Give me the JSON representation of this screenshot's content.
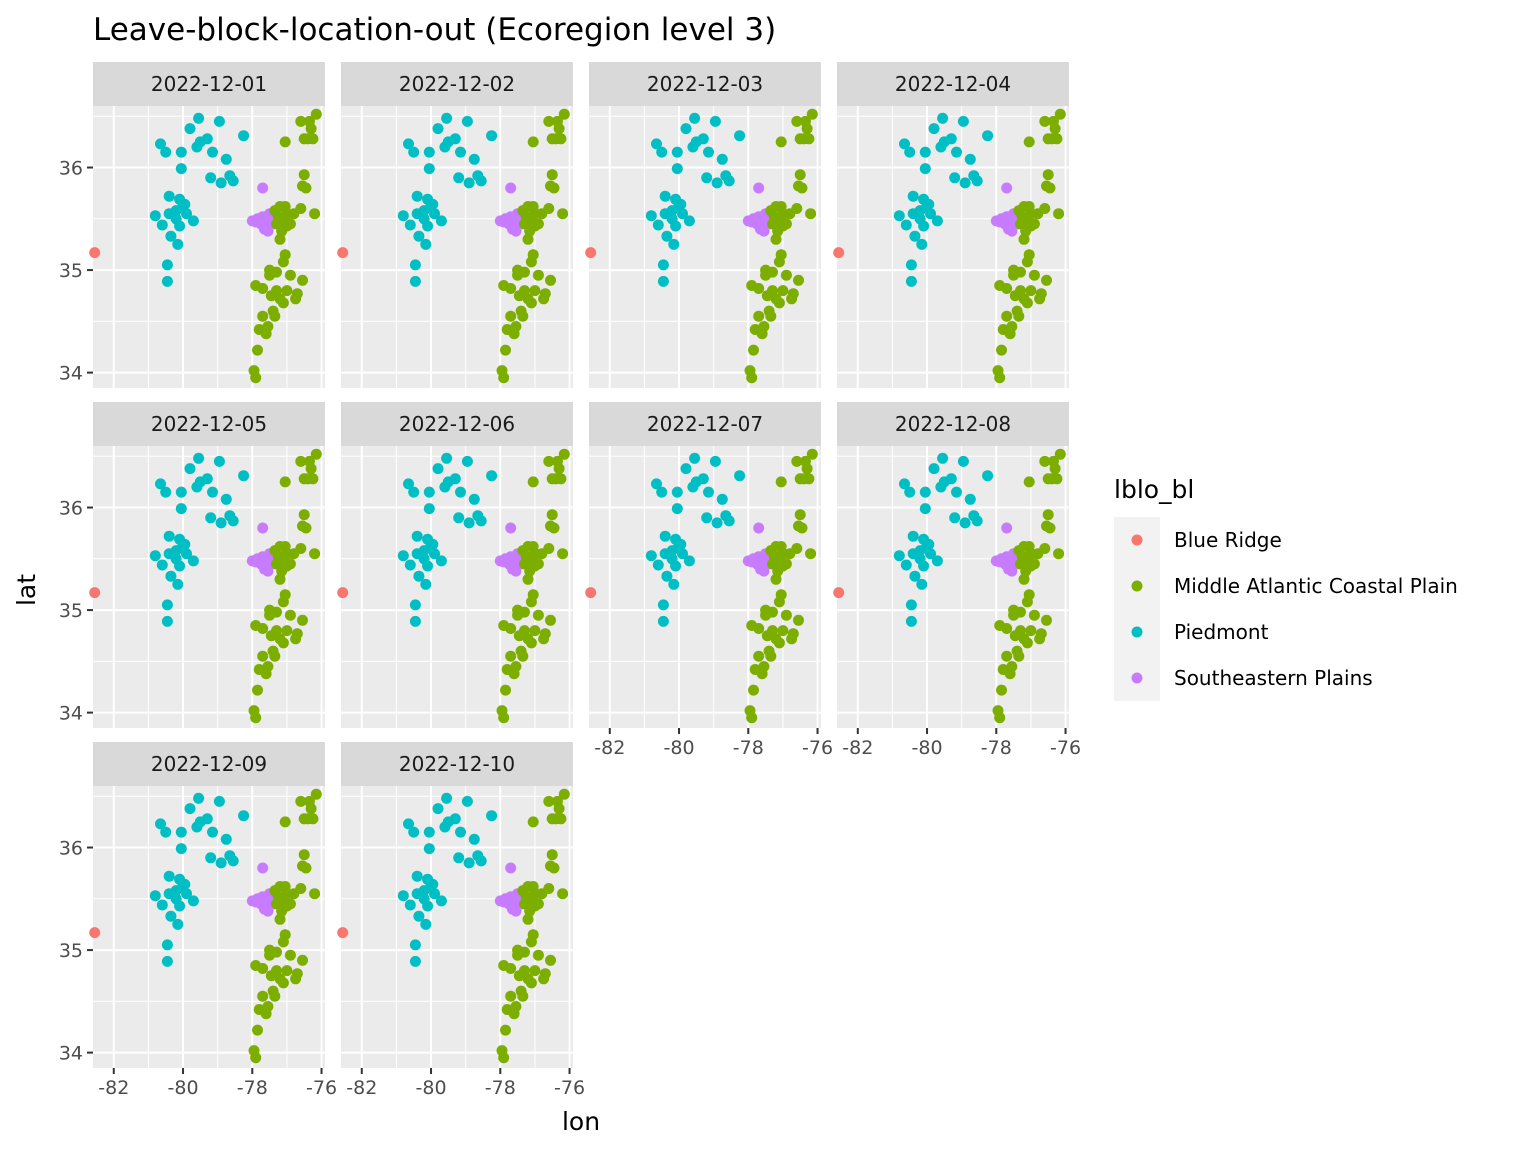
{
  "chart_data": {
    "type": "scatter",
    "title": "Leave-block-location-out (Ecoregion level 3)",
    "xlabel": "lon",
    "ylabel": "lat",
    "xlim": [
      -82.6,
      -75.9
    ],
    "ylim": [
      33.85,
      36.6
    ],
    "x_ticks": [
      {
        "value": -82,
        "label": "-82"
      },
      {
        "value": -80,
        "label": "-80"
      },
      {
        "value": -78,
        "label": "-78"
      },
      {
        "value": -76,
        "label": "-76"
      }
    ],
    "y_ticks": [
      {
        "value": 34,
        "label": "34"
      },
      {
        "value": 35,
        "label": "35"
      },
      {
        "value": 36,
        "label": "36"
      }
    ],
    "panels": [
      "2022-12-01",
      "2022-12-02",
      "2022-12-03",
      "2022-12-04",
      "2022-12-05",
      "2022-12-06",
      "2022-12-07",
      "2022-12-08",
      "2022-12-09",
      "2022-12-10"
    ],
    "grid": true,
    "legend": {
      "title": "lblo_bl",
      "position": "right",
      "entries": [
        {
          "label": "Blue Ridge",
          "color": "#f8766d"
        },
        {
          "label": "Middle Atlantic Coastal Plain",
          "color": "#7cae00"
        },
        {
          "label": "Piedmont",
          "color": "#00bfc4"
        },
        {
          "label": "Southeastern Plains",
          "color": "#c77cff"
        }
      ]
    },
    "series": [
      {
        "name": "Blue Ridge",
        "color": "#f8766d",
        "points": [
          [
            -82.55,
            35.17
          ]
        ]
      },
      {
        "name": "Piedmont",
        "color": "#00bfc4",
        "points": [
          [
            -80.65,
            36.23
          ],
          [
            -80.5,
            36.15
          ],
          [
            -80.05,
            36.15
          ],
          [
            -79.8,
            36.38
          ],
          [
            -79.55,
            36.48
          ],
          [
            -79.5,
            36.25
          ],
          [
            -79.3,
            36.28
          ],
          [
            -79.15,
            36.15
          ],
          [
            -78.95,
            36.45
          ],
          [
            -78.75,
            36.08
          ],
          [
            -79.2,
            35.9
          ],
          [
            -78.9,
            35.85
          ],
          [
            -78.65,
            35.92
          ],
          [
            -78.55,
            35.87
          ],
          [
            -78.25,
            36.31
          ],
          [
            -79.6,
            36.2
          ],
          [
            -80.05,
            35.99
          ],
          [
            -80.4,
            35.72
          ],
          [
            -80.1,
            35.69
          ],
          [
            -80.0,
            35.62
          ],
          [
            -80.2,
            35.58
          ],
          [
            -80.8,
            35.53
          ],
          [
            -80.4,
            35.55
          ],
          [
            -80.6,
            35.44
          ],
          [
            -80.35,
            35.33
          ],
          [
            -80.1,
            35.43
          ],
          [
            -79.9,
            35.55
          ],
          [
            -79.7,
            35.48
          ],
          [
            -80.15,
            35.25
          ],
          [
            -80.45,
            35.05
          ],
          [
            -80.45,
            34.89
          ],
          [
            -80.2,
            35.5
          ],
          [
            -79.95,
            35.64
          ]
        ]
      },
      {
        "name": "Southeastern Plains",
        "color": "#c77cff",
        "points": [
          [
            -77.7,
            35.8
          ],
          [
            -78.0,
            35.48
          ],
          [
            -77.85,
            35.5
          ],
          [
            -77.7,
            35.52
          ],
          [
            -77.6,
            35.48
          ],
          [
            -77.55,
            35.52
          ],
          [
            -77.75,
            35.45
          ],
          [
            -77.65,
            35.4
          ],
          [
            -77.5,
            35.55
          ],
          [
            -77.4,
            35.45
          ],
          [
            -77.55,
            35.38
          ],
          [
            -77.45,
            35.5
          ],
          [
            -77.9,
            35.47
          ]
        ]
      },
      {
        "name": "Middle Atlantic Coastal Plain",
        "color": "#7cae00",
        "points": [
          [
            -76.35,
            36.45
          ],
          [
            -76.15,
            36.52
          ],
          [
            -76.3,
            36.38
          ],
          [
            -76.4,
            36.28
          ],
          [
            -76.25,
            36.28
          ],
          [
            -77.05,
            36.25
          ],
          [
            -76.6,
            36.45
          ],
          [
            -76.5,
            36.28
          ],
          [
            -76.5,
            35.93
          ],
          [
            -76.55,
            35.82
          ],
          [
            -76.45,
            35.8
          ],
          [
            -76.2,
            35.55
          ],
          [
            -76.6,
            35.6
          ],
          [
            -76.8,
            35.55
          ],
          [
            -77.05,
            35.62
          ],
          [
            -77.1,
            35.5
          ],
          [
            -77.25,
            35.52
          ],
          [
            -77.3,
            35.45
          ],
          [
            -77.15,
            35.38
          ],
          [
            -77.0,
            35.43
          ],
          [
            -77.35,
            35.58
          ],
          [
            -77.2,
            35.62
          ],
          [
            -76.9,
            35.45
          ],
          [
            -77.0,
            35.55
          ],
          [
            -77.05,
            35.15
          ],
          [
            -77.1,
            35.08
          ],
          [
            -77.3,
            34.98
          ],
          [
            -77.5,
            34.95
          ],
          [
            -76.9,
            34.95
          ],
          [
            -77.0,
            34.8
          ],
          [
            -77.3,
            34.8
          ],
          [
            -77.45,
            34.75
          ],
          [
            -77.2,
            34.72
          ],
          [
            -76.7,
            34.77
          ],
          [
            -76.55,
            34.9
          ],
          [
            -76.75,
            34.72
          ],
          [
            -77.9,
            34.85
          ],
          [
            -77.7,
            34.82
          ],
          [
            -77.1,
            34.68
          ],
          [
            -77.35,
            34.55
          ],
          [
            -77.55,
            34.45
          ],
          [
            -77.7,
            34.55
          ],
          [
            -77.6,
            34.38
          ],
          [
            -77.8,
            34.42
          ],
          [
            -77.85,
            34.22
          ],
          [
            -77.95,
            34.02
          ],
          [
            -77.9,
            33.95
          ],
          [
            -77.5,
            35.0
          ],
          [
            -77.2,
            35.3
          ],
          [
            -77.4,
            34.6
          ]
        ]
      }
    ]
  }
}
